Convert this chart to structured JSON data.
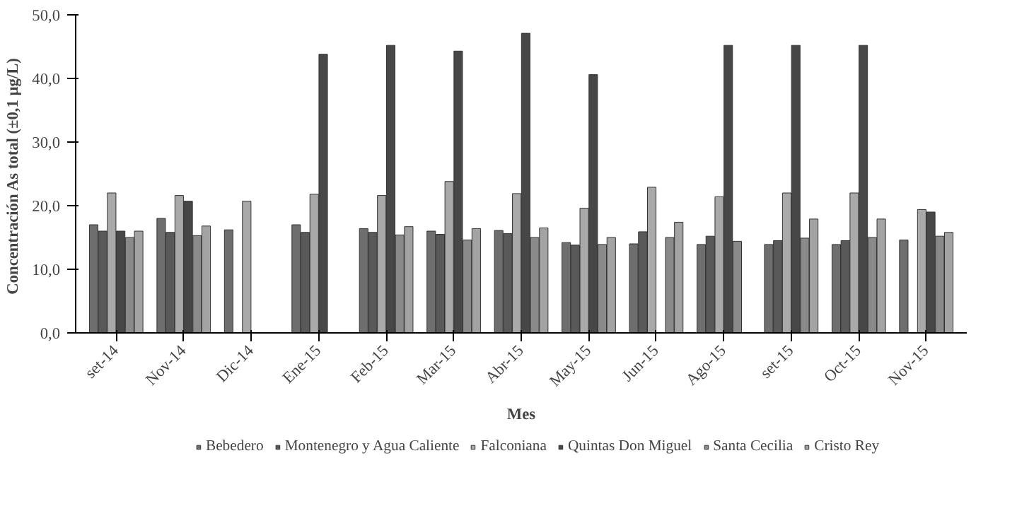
{
  "chart_data": {
    "type": "bar",
    "xlabel": "Mes",
    "ylabel": "Concentración As total  (±0,1 µg/L)",
    "categories": [
      "set-14",
      "Nov-14",
      "Dic-14",
      "Ene-15",
      "Feb-15",
      "Mar-15",
      "Abr-15",
      "May-15",
      "Jun-15",
      "Ago-15",
      "set-15",
      "Oct-15",
      "Nov-15"
    ],
    "series": [
      {
        "name": "Bebedero",
        "color": "#6e6e6e",
        "values": [
          17.0,
          18.0,
          16.2,
          17.0,
          16.4,
          16.0,
          16.1,
          14.2,
          14.0,
          13.9,
          13.9,
          13.9,
          14.6
        ]
      },
      {
        "name": "Montenegro y Agua Caliente",
        "color": "#595959",
        "values": [
          16.0,
          15.8,
          null,
          15.8,
          15.8,
          15.5,
          15.6,
          13.8,
          15.9,
          15.2,
          14.5,
          14.5,
          null
        ]
      },
      {
        "name": "Falconiana",
        "color": "#a9a9a9",
        "values": [
          22.0,
          21.6,
          20.7,
          21.8,
          21.6,
          23.8,
          21.9,
          19.6,
          22.9,
          21.4,
          22.0,
          22.0,
          19.4
        ]
      },
      {
        "name": "Quintas Don Miguel",
        "color": "#474747",
        "values": [
          16.0,
          20.7,
          null,
          43.8,
          45.2,
          44.3,
          47.1,
          40.6,
          null,
          45.2,
          45.2,
          45.2,
          19.0
        ]
      },
      {
        "name": "Santa Cecilia",
        "color": "#8a8a8a",
        "values": [
          15.0,
          15.3,
          null,
          null,
          15.4,
          14.6,
          15.0,
          13.9,
          15.0,
          14.4,
          14.9,
          15.0,
          15.2
        ]
      },
      {
        "name": "Cristo Rey",
        "color": "#a3a3a3",
        "values": [
          16.0,
          16.8,
          null,
          null,
          16.7,
          16.4,
          16.5,
          15.0,
          17.4,
          null,
          17.9,
          17.9,
          15.8
        ]
      }
    ],
    "ylim": [
      0,
      50
    ],
    "yticks": [
      {
        "value": 0,
        "label": "0,0"
      },
      {
        "value": 10,
        "label": "10,0"
      },
      {
        "value": 20,
        "label": "20,0"
      },
      {
        "value": 30,
        "label": "30,0"
      },
      {
        "value": 40,
        "label": "40,0"
      },
      {
        "value": 50,
        "label": "50,0"
      }
    ],
    "grid": false,
    "legend": "bottom"
  }
}
